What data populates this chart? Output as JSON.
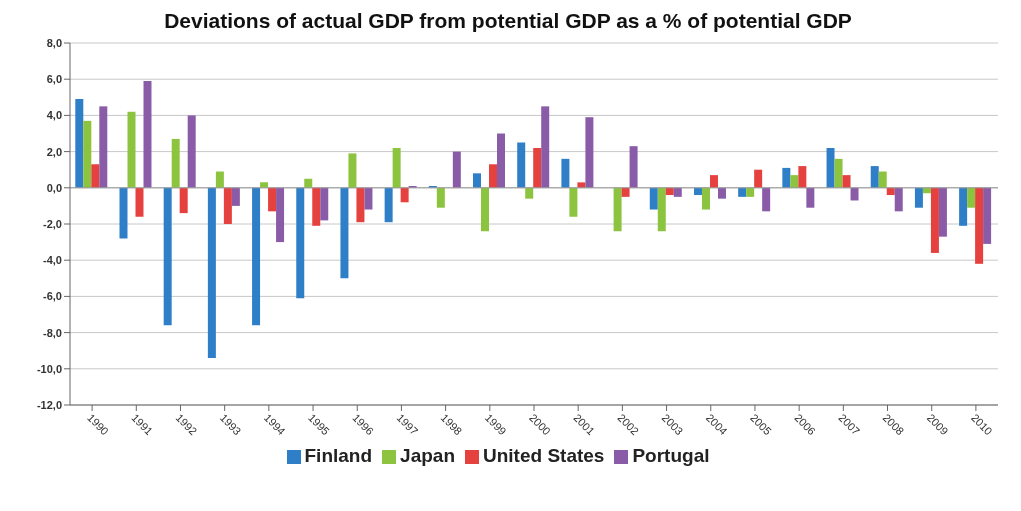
{
  "chart_data": {
    "type": "bar",
    "title": "Deviations of actual GDP from potential GDP as a % of potential GDP",
    "categories": [
      "1990",
      "1991",
      "1992",
      "1993",
      "1994",
      "1995",
      "1996",
      "1997",
      "1998",
      "1999",
      "2000",
      "2001",
      "2002",
      "2003",
      "2004",
      "2005",
      "2006",
      "2007",
      "2008",
      "2009",
      "2010"
    ],
    "series": [
      {
        "name": "Finland",
        "color": "#2f7fc8",
        "values": [
          4.9,
          -2.8,
          -7.6,
          -9.4,
          -7.6,
          -6.1,
          -5.0,
          -1.9,
          0.1,
          0.8,
          2.5,
          1.6,
          0,
          -1.2,
          -0.4,
          -0.5,
          1.1,
          2.2,
          1.2,
          -1.1,
          -2.1
        ]
      },
      {
        "name": "Japan",
        "color": "#8cc43f",
        "values": [
          3.7,
          4.2,
          2.7,
          0.9,
          0.3,
          0.5,
          1.9,
          2.2,
          -1.1,
          -2.4,
          -0.6,
          -1.6,
          -2.4,
          -2.4,
          -1.2,
          -0.5,
          0.7,
          1.6,
          0.9,
          -0.3,
          -1.1
        ]
      },
      {
        "name": "United States",
        "color": "#e5413e",
        "values": [
          1.3,
          -1.6,
          -1.4,
          -2.0,
          -1.3,
          -2.1,
          -1.9,
          -0.8,
          0,
          1.3,
          2.2,
          0.3,
          -0.5,
          -0.4,
          0.7,
          1.0,
          1.2,
          0.7,
          -0.4,
          -3.6,
          -4.2
        ]
      },
      {
        "name": "Portugal",
        "color": "#8a5ca8",
        "values": [
          4.5,
          5.9,
          4.0,
          -1.0,
          -3.0,
          -1.8,
          -1.2,
          0.1,
          2.0,
          3.0,
          4.5,
          3.9,
          2.3,
          -0.5,
          -0.6,
          -1.3,
          -1.1,
          -0.7,
          -1.3,
          -2.7,
          -3.1
        ]
      }
    ],
    "ylim": [
      -12,
      8
    ],
    "yticks": [
      {
        "value": -12,
        "label": "-12,0"
      },
      {
        "value": -10,
        "label": "-10,0"
      },
      {
        "value": -8,
        "label": "-8,0"
      },
      {
        "value": -6,
        "label": "-6,0"
      },
      {
        "value": -4,
        "label": "-4,0"
      },
      {
        "value": -2,
        "label": "-2,0"
      },
      {
        "value": 0,
        "label": "0,0"
      },
      {
        "value": 2,
        "label": "2,0"
      },
      {
        "value": 4,
        "label": "4,0"
      },
      {
        "value": 6,
        "label": "6,0"
      },
      {
        "value": 8,
        "label": "8,0"
      }
    ],
    "grid": "y",
    "legend": "bottom"
  }
}
